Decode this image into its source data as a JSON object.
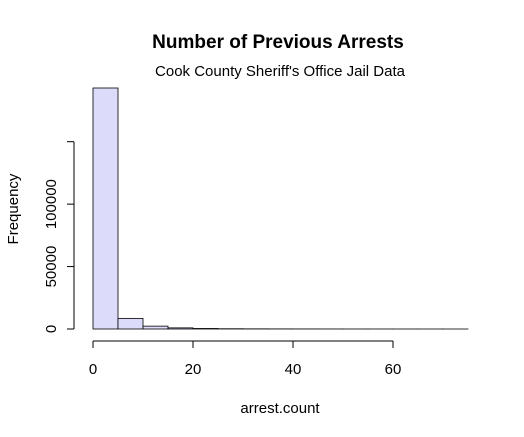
{
  "chart_data": {
    "type": "bar",
    "title": "Number of Previous Arrests",
    "subtitle": "Cook County Sheriff's Office Jail Data",
    "xlabel": "arrest.count",
    "ylabel": "Frequency",
    "bin_width": 5,
    "bin_starts": [
      0,
      5,
      10,
      15,
      20,
      25,
      30,
      35,
      40,
      45,
      50,
      55,
      60,
      65,
      70
    ],
    "values": [
      193000,
      8500,
      2300,
      900,
      400,
      200,
      120,
      80,
      50,
      30,
      20,
      15,
      10,
      5,
      3
    ],
    "xlim": [
      0,
      75
    ],
    "ylim": [
      0,
      193000
    ],
    "xticks": [
      0,
      20,
      40,
      60
    ],
    "yticks": [
      0,
      50000,
      100000,
      150000
    ],
    "ytick_labels": [
      "0",
      "50000",
      "100000",
      ""
    ],
    "bar_color": "#dcdcfa",
    "bar_border_color": "#000000",
    "grid": false
  }
}
